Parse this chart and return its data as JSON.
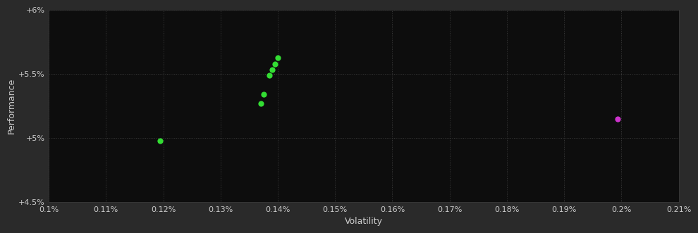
{
  "background_color": "#2a2a2a",
  "plot_bg_color": "#0d0d0d",
  "grid_color": "#3a3a3a",
  "text_color": "#cccccc",
  "xlabel": "Volatility",
  "ylabel": "Performance",
  "xlim": [
    0.001,
    0.0021
  ],
  "ylim": [
    0.045,
    0.06
  ],
  "xticks": [
    0.001,
    0.0011,
    0.0012,
    0.0013,
    0.0014,
    0.0015,
    0.0016,
    0.0017,
    0.0018,
    0.0019,
    0.002,
    0.0021
  ],
  "xticklabels": [
    "0.1%",
    "0.11%",
    "0.12%",
    "0.13%",
    "0.14%",
    "0.15%",
    "0.16%",
    "0.17%",
    "0.18%",
    "0.19%",
    "0.2%",
    "0.21%"
  ],
  "yticks": [
    0.045,
    0.05,
    0.055,
    0.06
  ],
  "yticklabels": [
    "+4.5%",
    "+5%",
    "+5.5%",
    "+6%"
  ],
  "green_points": [
    [
      0.0014,
      0.05625
    ],
    [
      0.001395,
      0.05575
    ],
    [
      0.00139,
      0.0553
    ],
    [
      0.001385,
      0.0549
    ],
    [
      0.001375,
      0.0534
    ],
    [
      0.00137,
      0.0527
    ]
  ],
  "green_color": "#33dd33",
  "purple_point": [
    0.001993,
    0.05145
  ],
  "purple_color": "#cc33cc",
  "lone_green_point": [
    0.001195,
    0.04975
  ],
  "marker_size": 35
}
